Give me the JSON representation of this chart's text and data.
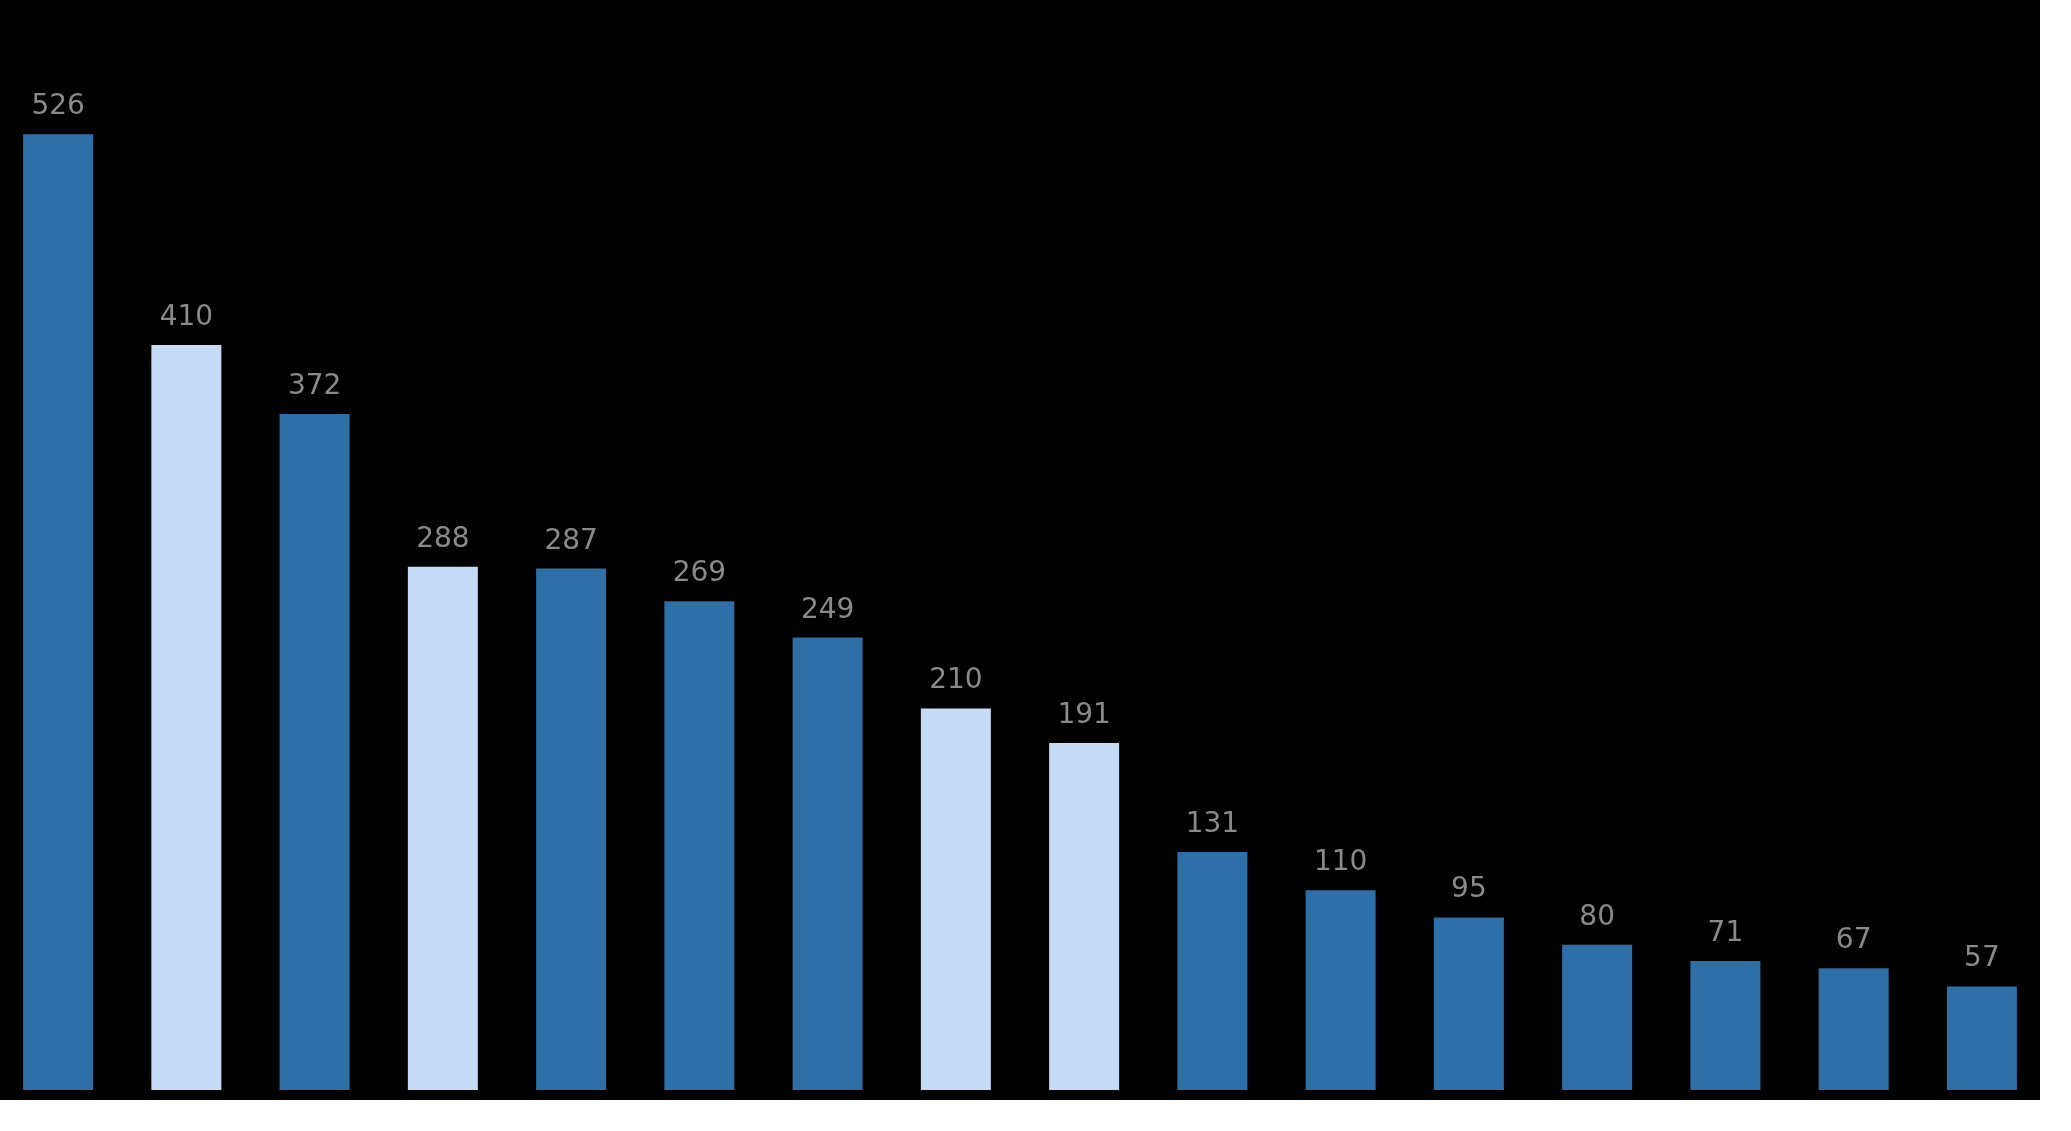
{
  "chart_data": {
    "type": "bar",
    "categories": [
      null,
      null,
      null,
      null,
      null,
      null,
      null,
      null,
      null,
      null,
      null,
      null,
      null,
      null,
      null,
      null
    ],
    "values": [
      526,
      410,
      372,
      288,
      287,
      269,
      249,
      210,
      191,
      131,
      110,
      95,
      80,
      71,
      67,
      57
    ],
    "colors": [
      "#2f6fa8",
      "#c4dcf8",
      "#2f6fa8",
      "#c4dcf8",
      "#2f6fa8",
      "#2f6fa8",
      "#2f6fa8",
      "#c4dcf8",
      "#c4dcf8",
      "#2f6fa8",
      "#2f6fa8",
      "#2f6fa8",
      "#2f6fa8",
      "#2f6fa8",
      "#2f6fa8",
      "#2f6fa8"
    ],
    "data_labels": true
  }
}
